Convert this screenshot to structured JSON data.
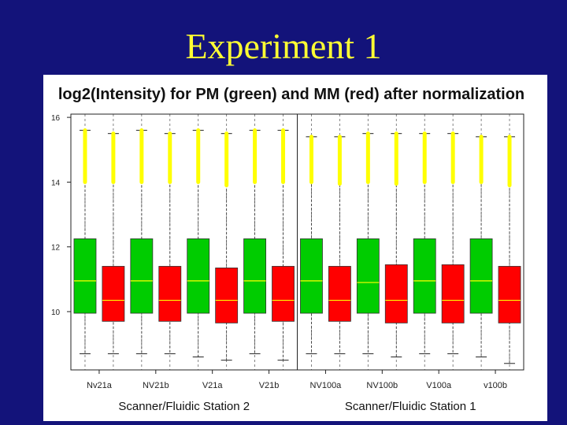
{
  "slide": {
    "title": "Experiment 1"
  },
  "colors": {
    "background": "#13137a",
    "title": "#ffff33",
    "pm": "#00cc00",
    "mm": "#ff0000",
    "median_pm": "#ffff00",
    "median_mm": "#ffff00",
    "outlier": "#ffff00"
  },
  "chart_data": {
    "type": "boxplot",
    "title": "log2(Intensity) for PM (green) and MM (red) after normalization",
    "xlabel": "",
    "ylabel": "",
    "ylim": [
      8.2,
      16.1
    ],
    "yticks": [
      10,
      12,
      14,
      16
    ],
    "ytick_labels": [
      "10",
      "12",
      "14",
      "16"
    ],
    "grid": "vertical dashed",
    "categories": [
      "NV21a",
      "NV21b",
      "V21a",
      "V21b",
      "NV100a",
      "NV100b",
      "V100a",
      "V100b"
    ],
    "category_labels": [
      "Nv21a",
      "NV21b",
      "V21a",
      "V21b",
      "NV100a",
      "NV100b",
      "V100a",
      "v100b"
    ],
    "groups": [
      {
        "label": "Scanner/Fluidic Station 2",
        "categories": [
          "NV21a",
          "NV21b",
          "V21a",
          "V21b"
        ]
      },
      {
        "label": "Scanner/Fluidic Station 1",
        "categories": [
          "NV100a",
          "NV100b",
          "V100a",
          "V100b"
        ]
      }
    ],
    "series": [
      {
        "name": "PM",
        "boxes": [
          {
            "whisker_low": 8.7,
            "q1": 9.95,
            "median": 10.95,
            "q3": 12.25,
            "whisker_high": 15.6,
            "outliers_top": [
              14.0,
              15.6
            ]
          },
          {
            "whisker_low": 8.7,
            "q1": 9.95,
            "median": 10.95,
            "q3": 12.25,
            "whisker_high": 15.6,
            "outliers_top": [
              14.0,
              15.6
            ]
          },
          {
            "whisker_low": 8.6,
            "q1": 9.95,
            "median": 10.95,
            "q3": 12.25,
            "whisker_high": 15.6,
            "outliers_top": [
              14.0,
              15.6
            ]
          },
          {
            "whisker_low": 8.7,
            "q1": 9.95,
            "median": 10.95,
            "q3": 12.25,
            "whisker_high": 15.6,
            "outliers_top": [
              14.0,
              15.6
            ]
          },
          {
            "whisker_low": 8.7,
            "q1": 9.95,
            "median": 10.95,
            "q3": 12.25,
            "whisker_high": 15.4,
            "outliers_top": [
              14.0,
              15.4
            ]
          },
          {
            "whisker_low": 8.7,
            "q1": 9.95,
            "median": 10.9,
            "q3": 12.25,
            "whisker_high": 15.5,
            "outliers_top": [
              14.0,
              15.5
            ]
          },
          {
            "whisker_low": 8.7,
            "q1": 9.95,
            "median": 10.95,
            "q3": 12.25,
            "whisker_high": 15.5,
            "outliers_top": [
              14.0,
              15.5
            ]
          },
          {
            "whisker_low": 8.6,
            "q1": 9.95,
            "median": 10.95,
            "q3": 12.25,
            "whisker_high": 15.4,
            "outliers_top": [
              14.0,
              15.4
            ]
          }
        ]
      },
      {
        "name": "MM",
        "boxes": [
          {
            "whisker_low": 8.7,
            "q1": 9.7,
            "median": 10.35,
            "q3": 11.4,
            "whisker_high": 15.5,
            "outliers_top": [
              14.0,
              15.5
            ]
          },
          {
            "whisker_low": 8.7,
            "q1": 9.7,
            "median": 10.35,
            "q3": 11.4,
            "whisker_high": 15.5,
            "outliers_top": [
              14.0,
              15.5
            ]
          },
          {
            "whisker_low": 8.5,
            "q1": 9.65,
            "median": 10.35,
            "q3": 11.35,
            "whisker_high": 15.5,
            "outliers_top": [
              13.9,
              15.5
            ]
          },
          {
            "whisker_low": 8.5,
            "q1": 9.7,
            "median": 10.35,
            "q3": 11.4,
            "whisker_high": 15.6,
            "outliers_top": [
              14.0,
              15.6
            ]
          },
          {
            "whisker_low": 8.7,
            "q1": 9.7,
            "median": 10.35,
            "q3": 11.4,
            "whisker_high": 15.4,
            "outliers_top": [
              13.95,
              15.4
            ]
          },
          {
            "whisker_low": 8.6,
            "q1": 9.65,
            "median": 10.35,
            "q3": 11.45,
            "whisker_high": 15.5,
            "outliers_top": [
              13.95,
              15.5
            ]
          },
          {
            "whisker_low": 8.7,
            "q1": 9.65,
            "median": 10.35,
            "q3": 11.45,
            "whisker_high": 15.5,
            "outliers_top": [
              14.0,
              15.5
            ]
          },
          {
            "whisker_low": 8.4,
            "q1": 9.65,
            "median": 10.35,
            "q3": 11.4,
            "whisker_high": 15.4,
            "outliers_top": [
              13.9,
              15.4
            ]
          }
        ]
      }
    ]
  }
}
